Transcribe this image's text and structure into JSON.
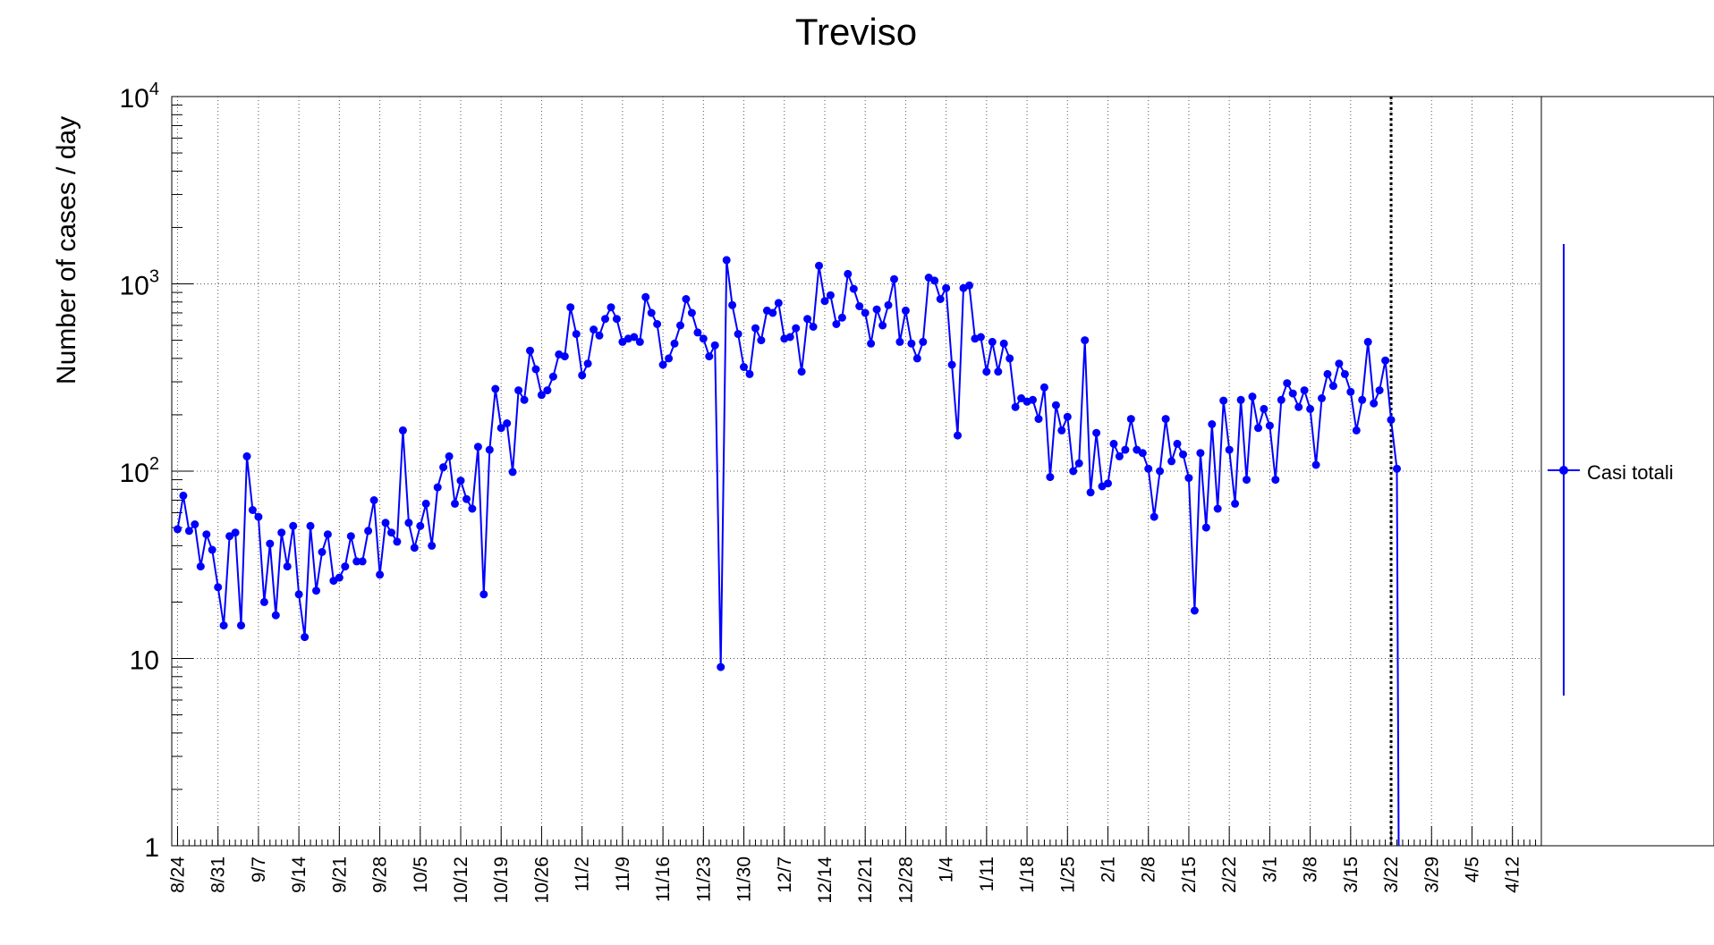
{
  "colors": {
    "series": "#0000ff",
    "axis": "#000000",
    "grid": "#555555",
    "background": "#ffffff"
  },
  "chart_data": {
    "type": "line",
    "title": "Treviso",
    "ylabel": "Number of cases / day",
    "xlabel": "",
    "y_scale": "log",
    "ylim": [
      1,
      10000
    ],
    "y_ticks": [
      {
        "value": 1,
        "base": "1",
        "exp": ""
      },
      {
        "value": 10,
        "base": "10",
        "exp": ""
      },
      {
        "value": 100,
        "base": "10",
        "exp": "2"
      },
      {
        "value": 1000,
        "base": "10",
        "exp": "3"
      },
      {
        "value": 10000,
        "base": "10",
        "exp": "4"
      }
    ],
    "xlim": [
      "2020-08-23",
      "2021-04-17"
    ],
    "x_tick_labels": [
      "8/24",
      "8/31",
      "9/7",
      "9/14",
      "9/21",
      "9/28",
      "10/5",
      "10/12",
      "10/19",
      "10/26",
      "11/2",
      "11/9",
      "11/16",
      "11/23",
      "11/30",
      "12/7",
      "12/14",
      "12/21",
      "12/28",
      "1/4",
      "1/11",
      "1/18",
      "1/25",
      "2/1",
      "2/8",
      "2/15",
      "2/22",
      "3/1",
      "3/8",
      "3/15",
      "3/22",
      "3/29",
      "4/5",
      "4/12"
    ],
    "x_tick_dates": [
      "2020-08-24",
      "2020-08-31",
      "2020-09-07",
      "2020-09-14",
      "2020-09-21",
      "2020-09-28",
      "2020-10-05",
      "2020-10-12",
      "2020-10-19",
      "2020-10-26",
      "2020-11-02",
      "2020-11-09",
      "2020-11-16",
      "2020-11-23",
      "2020-11-30",
      "2020-12-07",
      "2020-12-14",
      "2020-12-21",
      "2020-12-28",
      "2021-01-04",
      "2021-01-11",
      "2021-01-18",
      "2021-01-25",
      "2021-02-01",
      "2021-02-08",
      "2021-02-15",
      "2021-02-22",
      "2021-03-01",
      "2021-03-08",
      "2021-03-15",
      "2021-03-22",
      "2021-03-29",
      "2021-04-05",
      "2021-04-12"
    ],
    "grid": true,
    "legend": {
      "placement": "right",
      "entries": [
        "Casi totali"
      ]
    },
    "vertical_marker_date": "2021-03-22",
    "series": [
      {
        "name": "Casi totali",
        "start_date": "2020-08-23",
        "values": [
          49,
          74,
          48,
          52,
          31,
          46,
          38,
          24,
          15,
          45,
          47,
          15,
          120,
          62,
          57,
          20,
          41,
          17,
          47,
          31,
          51,
          22,
          13,
          51,
          23,
          37,
          46,
          26,
          27,
          31,
          45,
          33,
          33,
          48,
          70,
          28,
          53,
          47,
          42,
          165,
          53,
          39,
          51,
          67,
          40,
          82,
          105,
          120,
          67,
          89,
          71,
          63,
          135,
          22,
          130,
          275,
          170,
          180,
          99,
          270,
          240,
          440,
          350,
          255,
          270,
          320,
          420,
          410,
          750,
          540,
          325,
          375,
          570,
          530,
          650,
          750,
          650,
          490,
          510,
          520,
          490,
          850,
          700,
          610,
          370,
          400,
          480,
          600,
          830,
          700,
          550,
          510,
          410,
          470,
          9,
          1340,
          770,
          540,
          360,
          330,
          580,
          500,
          720,
          700,
          790,
          510,
          520,
          580,
          340,
          650,
          590,
          1250,
          810,
          870,
          610,
          660,
          1130,
          940,
          760,
          700,
          480,
          730,
          600,
          770,
          1060,
          490,
          720,
          480,
          400,
          490,
          1080,
          1040,
          830,
          950,
          370,
          155,
          950,
          980,
          510,
          520,
          340,
          490,
          340,
          480,
          400,
          220,
          245,
          235,
          240,
          190,
          280,
          93,
          225,
          165,
          195,
          100,
          110,
          500,
          77,
          160,
          83,
          86,
          140,
          120,
          130,
          190,
          130,
          125,
          103,
          57,
          100,
          190,
          113,
          140,
          123,
          92,
          18,
          125,
          50,
          178,
          63,
          238,
          130,
          67,
          240,
          90,
          250,
          170,
          215,
          175,
          90,
          240,
          295,
          260,
          220,
          270,
          215,
          108,
          245,
          330,
          285,
          375,
          330,
          265,
          165,
          240,
          490,
          230,
          270,
          390,
          188,
          103
        ]
      }
    ]
  }
}
